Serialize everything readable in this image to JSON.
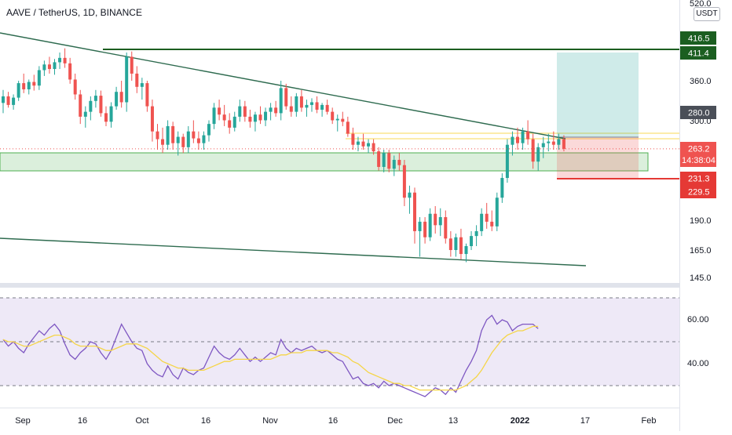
{
  "header": {
    "title": "AAVE / TetherUS, 1D, BINANCE",
    "unit": "USDT"
  },
  "chart_data": {
    "type": "candlestick",
    "title": "AAVE / TetherUS, 1D, BINANCE",
    "y_scale": "log",
    "price_ticks": [
      "520.0",
      "360.0",
      "300.0",
      "190.0",
      "165.0",
      "145.0"
    ],
    "x_ticks": [
      "Sep",
      "16",
      "Oct",
      "16",
      "Nov",
      "16",
      "Dec",
      "13",
      "2022",
      "17",
      "Feb"
    ],
    "price_badges": [
      {
        "label": "416.5",
        "color": "#1b5e20"
      },
      {
        "label": "411.4",
        "color": "#1b5e20"
      },
      {
        "label": "280.0",
        "color": "#4a4f58"
      },
      {
        "label": "263.2",
        "sub": "14:38:04",
        "color": "#ef5350"
      },
      {
        "label": "231.3",
        "color": "#e53935"
      },
      {
        "label": "229.5",
        "color": "#e53935"
      }
    ],
    "candles": [
      [
        325,
        345,
        310,
        335
      ],
      [
        335,
        342,
        318,
        322
      ],
      [
        322,
        338,
        315,
        333
      ],
      [
        333,
        360,
        328,
        356
      ],
      [
        356,
        372,
        340,
        346
      ],
      [
        346,
        362,
        338,
        358
      ],
      [
        358,
        370,
        344,
        352
      ],
      [
        352,
        385,
        345,
        378
      ],
      [
        378,
        395,
        368,
        388
      ],
      [
        388,
        402,
        372,
        380
      ],
      [
        380,
        398,
        370,
        392
      ],
      [
        392,
        410,
        380,
        400
      ],
      [
        400,
        418,
        382,
        390
      ],
      [
        390,
        400,
        355,
        362
      ],
      [
        362,
        372,
        330,
        338
      ],
      [
        338,
        345,
        295,
        305
      ],
      [
        305,
        320,
        290,
        312
      ],
      [
        312,
        335,
        300,
        328
      ],
      [
        328,
        345,
        318,
        336
      ],
      [
        336,
        344,
        305,
        310
      ],
      [
        310,
        320,
        292,
        298
      ],
      [
        298,
        326,
        290,
        320
      ],
      [
        320,
        350,
        315,
        342
      ],
      [
        342,
        360,
        318,
        326
      ],
      [
        326,
        410,
        312,
        402
      ],
      [
        402,
        412,
        360,
        372
      ],
      [
        372,
        385,
        340,
        350
      ],
      [
        350,
        365,
        330,
        356
      ],
      [
        356,
        360,
        312,
        320
      ],
      [
        320,
        330,
        272,
        285
      ],
      [
        285,
        295,
        262,
        275
      ],
      [
        275,
        290,
        258,
        268
      ],
      [
        268,
        300,
        262,
        292
      ],
      [
        292,
        298,
        262,
        270
      ],
      [
        270,
        285,
        255,
        278
      ],
      [
        278,
        282,
        258,
        265
      ],
      [
        265,
        292,
        258,
        285
      ],
      [
        285,
        300,
        270,
        276
      ],
      [
        276,
        285,
        262,
        270
      ],
      [
        270,
        285,
        262,
        280
      ],
      [
        280,
        300,
        272,
        295
      ],
      [
        295,
        325,
        288,
        318
      ],
      [
        318,
        330,
        300,
        308
      ],
      [
        308,
        322,
        292,
        300
      ],
      [
        300,
        310,
        282,
        290
      ],
      [
        290,
        312,
        285,
        305
      ],
      [
        305,
        330,
        298,
        320
      ],
      [
        320,
        328,
        298,
        305
      ],
      [
        305,
        315,
        290,
        298
      ],
      [
        298,
        312,
        285,
        308
      ],
      [
        308,
        320,
        295,
        300
      ],
      [
        300,
        318,
        292,
        312
      ],
      [
        312,
        325,
        300,
        318
      ],
      [
        318,
        328,
        305,
        310
      ],
      [
        310,
        360,
        300,
        348
      ],
      [
        348,
        355,
        315,
        320
      ],
      [
        320,
        335,
        305,
        312
      ],
      [
        312,
        340,
        305,
        335
      ],
      [
        335,
        345,
        312,
        318
      ],
      [
        318,
        330,
        305,
        322
      ],
      [
        322,
        332,
        312,
        326
      ],
      [
        326,
        335,
        310,
        315
      ],
      [
        315,
        325,
        305,
        322
      ],
      [
        322,
        330,
        308,
        312
      ],
      [
        312,
        318,
        295,
        300
      ],
      [
        300,
        308,
        285,
        302
      ],
      [
        302,
        312,
        292,
        298
      ],
      [
        298,
        305,
        278,
        282
      ],
      [
        282,
        290,
        262,
        268
      ],
      [
        268,
        278,
        260,
        272
      ],
      [
        272,
        282,
        262,
        266
      ],
      [
        266,
        275,
        258,
        270
      ],
      [
        270,
        275,
        256,
        260
      ],
      [
        260,
        265,
        238,
        242
      ],
      [
        242,
        262,
        236,
        258
      ],
      [
        258,
        262,
        236,
        240
      ],
      [
        240,
        255,
        232,
        250
      ],
      [
        250,
        258,
        238,
        244
      ],
      [
        244,
        250,
        202,
        210
      ],
      [
        210,
        222,
        195,
        215
      ],
      [
        215,
        220,
        170,
        180
      ],
      [
        180,
        192,
        160,
        188
      ],
      [
        188,
        192,
        170,
        175
      ],
      [
        175,
        200,
        172,
        195
      ],
      [
        195,
        202,
        178,
        185
      ],
      [
        185,
        200,
        176,
        192
      ],
      [
        192,
        198,
        170,
        174
      ],
      [
        174,
        180,
        160,
        165
      ],
      [
        165,
        178,
        160,
        175
      ],
      [
        175,
        182,
        158,
        162
      ],
      [
        162,
        170,
        156,
        168
      ],
      [
        168,
        180,
        165,
        176
      ],
      [
        176,
        185,
        168,
        180
      ],
      [
        180,
        200,
        176,
        195
      ],
      [
        195,
        205,
        182,
        188
      ],
      [
        188,
        198,
        180,
        184
      ],
      [
        184,
        215,
        180,
        210
      ],
      [
        210,
        235,
        205,
        230
      ],
      [
        230,
        275,
        225,
        268
      ],
      [
        268,
        285,
        255,
        278
      ],
      [
        278,
        290,
        262,
        270
      ],
      [
        270,
        290,
        262,
        285
      ],
      [
        285,
        300,
        268,
        275
      ],
      [
        275,
        282,
        240,
        248
      ],
      [
        248,
        270,
        238,
        265
      ],
      [
        265,
        278,
        252,
        270
      ],
      [
        270,
        282,
        260,
        272
      ],
      [
        272,
        285,
        262,
        268
      ],
      [
        268,
        282,
        262,
        275
      ],
      [
        275,
        280,
        260,
        263
      ]
    ],
    "rsi_ticks": [
      "60.00",
      "40.00"
    ],
    "rsi": [
      51,
      48,
      50,
      47,
      45,
      49,
      52,
      55,
      53,
      56,
      58,
      55,
      49,
      44,
      42,
      45,
      47,
      50,
      49,
      45,
      42,
      46,
      52,
      58,
      54,
      50,
      47,
      46,
      40,
      37,
      35,
      34,
      39,
      35,
      33,
      38,
      36,
      35,
      37,
      38,
      43,
      48,
      45,
      43,
      42,
      44,
      47,
      44,
      41,
      43,
      41,
      43,
      45,
      44,
      51,
      47,
      45,
      47,
      46,
      47,
      48,
      46,
      45,
      46,
      44,
      42,
      41,
      37,
      33,
      34,
      31,
      30,
      31,
      29,
      32,
      30,
      31,
      30,
      29,
      28,
      27,
      26,
      25,
      27,
      29,
      28,
      26,
      29,
      27,
      32,
      37,
      41,
      46,
      55,
      60,
      62,
      58,
      60,
      59,
      55,
      57,
      58,
      58,
      58,
      56
    ],
    "rsi_ma": [
      51,
      50,
      50,
      49,
      48,
      48,
      49,
      50,
      51,
      52,
      53,
      53,
      52,
      51,
      49,
      48,
      48,
      48,
      48,
      47,
      46,
      46,
      47,
      48,
      49,
      49,
      49,
      48,
      47,
      45,
      43,
      41,
      40,
      39,
      38,
      38,
      37,
      37,
      37,
      37,
      38,
      39,
      40,
      41,
      41,
      42,
      42,
      42,
      42,
      42,
      42,
      42,
      42,
      43,
      44,
      44,
      45,
      45,
      45,
      46,
      46,
      46,
      46,
      46,
      45,
      45,
      44,
      43,
      41,
      40,
      38,
      36,
      35,
      34,
      33,
      32,
      31,
      31,
      30,
      30,
      29,
      28,
      28,
      28,
      28,
      28,
      28,
      28,
      28,
      29,
      30,
      32,
      34,
      37,
      41,
      45,
      48,
      51,
      53,
      54,
      55,
      55,
      56,
      57,
      57
    ]
  }
}
